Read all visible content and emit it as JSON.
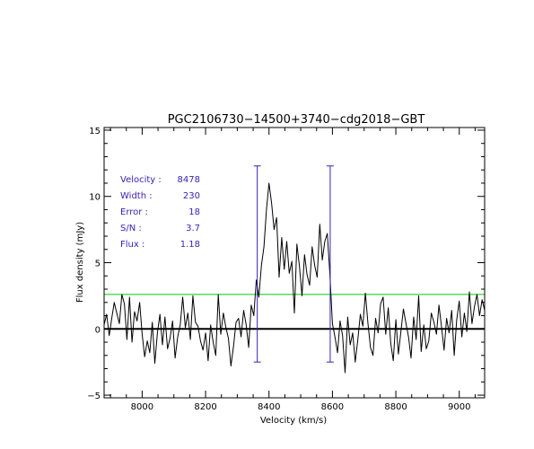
{
  "chart_data": {
    "type": "line",
    "title": "PGC2106730−14500+3740−cdg2018−GBT",
    "xlabel": "Velocity (km/s)",
    "ylabel": "Flux density (mJy)",
    "xlim": [
      7880,
      9080
    ],
    "ylim": [
      -5.2,
      15.2
    ],
    "xticks": [
      8000,
      8200,
      8400,
      8600,
      8800,
      9000
    ],
    "xtick_labels": [
      "8000",
      "8200",
      "8400",
      "8600",
      "8800",
      "9000"
    ],
    "yticks": [
      -5,
      0,
      5,
      10,
      15
    ],
    "ytick_labels": [
      "−5",
      "0",
      "5",
      "10",
      "15"
    ],
    "zero_line": 0,
    "threshold_line": {
      "y": 2.6,
      "color": "#00cc00"
    },
    "markers": {
      "color": "#3a1fb4",
      "positions": [
        8363,
        8593
      ],
      "y_range": [
        -2.5,
        12.3
      ]
    },
    "info_box": [
      {
        "label": "Velocity :",
        "value": "8478"
      },
      {
        "label": "Width :",
        "value": "230"
      },
      {
        "label": "Error :",
        "value": "18"
      },
      {
        "label": "S/N :",
        "value": "3.7"
      },
      {
        "label": "Flux :",
        "value": "1.18"
      }
    ],
    "series": [
      {
        "color": "#000000",
        "x": [
          7880,
          7888,
          7896,
          7904,
          7912,
          7920,
          7928,
          7936,
          7944,
          7952,
          7960,
          7968,
          7976,
          7984,
          7992,
          8000,
          8008,
          8016,
          8024,
          8032,
          8040,
          8048,
          8056,
          8064,
          8072,
          8080,
          8088,
          8096,
          8104,
          8112,
          8120,
          8128,
          8136,
          8144,
          8152,
          8160,
          8168,
          8176,
          8184,
          8192,
          8200,
          8208,
          8216,
          8224,
          8232,
          8240,
          8248,
          8256,
          8264,
          8272,
          8280,
          8288,
          8296,
          8304,
          8312,
          8320,
          8328,
          8336,
          8344,
          8352,
          8360,
          8368,
          8376,
          8384,
          8392,
          8400,
          8408,
          8416,
          8424,
          8432,
          8440,
          8448,
          8456,
          8464,
          8472,
          8480,
          8488,
          8496,
          8504,
          8512,
          8520,
          8528,
          8536,
          8544,
          8552,
          8560,
          8568,
          8576,
          8584,
          8592,
          8600,
          8608,
          8616,
          8624,
          8632,
          8640,
          8648,
          8656,
          8664,
          8672,
          8680,
          8688,
          8696,
          8704,
          8712,
          8720,
          8728,
          8736,
          8744,
          8752,
          8760,
          8768,
          8776,
          8784,
          8792,
          8800,
          8808,
          8816,
          8824,
          8832,
          8840,
          8848,
          8856,
          8864,
          8872,
          8880,
          8888,
          8896,
          8904,
          8912,
          8920,
          8928,
          8936,
          8944,
          8952,
          8960,
          8968,
          8976,
          8984,
          8992,
          9000,
          9008,
          9016,
          9024,
          9032,
          9040,
          9048,
          9056,
          9064,
          9072,
          9080
        ],
        "y": [
          0.3,
          1.1,
          -0.5,
          0.8,
          2.0,
          1.2,
          0.4,
          2.6,
          1.9,
          -0.8,
          2.4,
          -1.0,
          1.3,
          0.6,
          2.0,
          -0.4,
          -2.1,
          -0.9,
          -1.8,
          0.5,
          -2.6,
          -0.3,
          1.1,
          -1.2,
          0.9,
          -1.5,
          -0.7,
          0.6,
          -2.2,
          -0.6,
          0.3,
          2.4,
          0.1,
          1.2,
          -0.8,
          2.5,
          0.5,
          0.2,
          -0.9,
          -1.6,
          -0.3,
          -2.4,
          0.3,
          -1.0,
          -2.0,
          2.6,
          -0.4,
          1.2,
          0.1,
          -0.7,
          -2.8,
          -1.3,
          0.5,
          0.8,
          -0.6,
          1.4,
          0.3,
          -1.4,
          1.8,
          1.0,
          3.7,
          2.4,
          4.8,
          6.2,
          9.0,
          11.0,
          9.5,
          7.5,
          8.4,
          3.9,
          6.9,
          4.5,
          6.6,
          4.2,
          5.1,
          1.2,
          6.4,
          4.7,
          2.5,
          5.6,
          4.1,
          3.3,
          6.2,
          4.8,
          3.9,
          7.9,
          5.2,
          6.6,
          7.2,
          4.1,
          0.4,
          -0.6,
          -1.8,
          0.6,
          -0.5,
          -3.3,
          0.9,
          -1.2,
          -0.3,
          -2.5,
          -0.8,
          1.1,
          0.2,
          2.7,
          0.4,
          -1.4,
          -2.0,
          0.8,
          -0.3,
          1.9,
          2.4,
          -0.4,
          1.6,
          -1.1,
          -2.4,
          0.7,
          -1.9,
          -0.2,
          1.5,
          0.4,
          -0.6,
          -2.2,
          0.9,
          -0.8,
          2.5,
          -1.7,
          0.3,
          -1.5,
          -0.9,
          1.2,
          0.5,
          -0.4,
          1.8,
          0.2,
          -1.6,
          0.8,
          -0.3,
          1.4,
          -2.0,
          0.7,
          2.1,
          -0.6,
          1.2,
          -0.2,
          2.8,
          0.4,
          1.7,
          2.6,
          1.0,
          2.2,
          1.4
        ]
      }
    ]
  }
}
